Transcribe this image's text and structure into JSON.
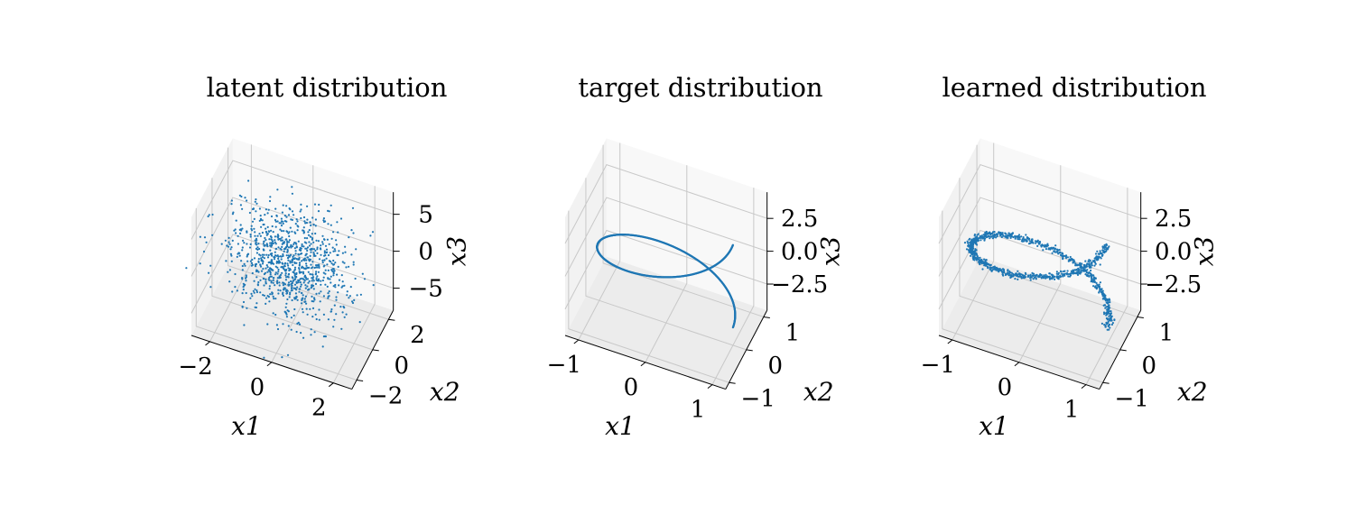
{
  "chart_data": [
    {
      "type": "scatter",
      "title": "latent distribution",
      "xlabel": "x1",
      "ylabel": "x2",
      "zlabel": "x3",
      "xlim": [
        -2.6,
        2.6
      ],
      "ylim": [
        -2.6,
        2.6
      ],
      "zlim": [
        -8,
        8
      ],
      "xticks": [
        "−2",
        "0",
        "2"
      ],
      "yticks": [
        "−2",
        "0",
        "2"
      ],
      "zticks": [
        "−5",
        "0",
        "5"
      ],
      "xtick_values": [
        -2,
        0,
        2
      ],
      "ytick_values": [
        -2,
        0,
        2
      ],
      "ztick_values": [
        -5,
        0,
        5
      ],
      "series": [
        {
          "kind": "gaussian-samples",
          "count": 1000,
          "mean": [
            0,
            0,
            0
          ],
          "std": [
            1,
            1,
            3
          ],
          "color": "#1f77b4",
          "marker": "dot"
        }
      ]
    },
    {
      "type": "scatter",
      "title": "target distribution",
      "xlabel": "x1",
      "ylabel": "x2",
      "zlabel": "x3",
      "xlim": [
        -1.2,
        1.2
      ],
      "ylim": [
        -1.2,
        1.2
      ],
      "zlim": [
        -4.5,
        4.5
      ],
      "xticks": [
        "−1",
        "0",
        "1"
      ],
      "yticks": [
        "−1",
        "0",
        "1"
      ],
      "zticks": [
        "−2.5",
        "0.0",
        "2.5"
      ],
      "xtick_values": [
        -1,
        0,
        1
      ],
      "ytick_values": [
        -1,
        0,
        1
      ],
      "ztick_values": [
        -2.5,
        0,
        2.5
      ],
      "series": [
        {
          "kind": "helix",
          "count": 1000,
          "t_range": [
            0,
            6.28
          ],
          "x": "cos(t)",
          "y": "sin(t)",
          "z": "t - 3.14",
          "noise": 0.0,
          "color": "#1f77b4",
          "marker": "dot"
        }
      ]
    },
    {
      "type": "scatter",
      "title": "learned distribution",
      "xlabel": "x1",
      "ylabel": "x2",
      "zlabel": "x3",
      "xlim": [
        -1.2,
        1.2
      ],
      "ylim": [
        -1.2,
        1.2
      ],
      "zlim": [
        -4.5,
        4.5
      ],
      "xticks": [
        "−1",
        "0",
        "1"
      ],
      "yticks": [
        "−1",
        "0",
        "1"
      ],
      "zticks": [
        "−2.5",
        "0.0",
        "2.5"
      ],
      "xtick_values": [
        -1,
        0,
        1
      ],
      "ytick_values": [
        -1,
        0,
        1
      ],
      "ztick_values": [
        -2.5,
        0,
        2.5
      ],
      "series": [
        {
          "kind": "helix",
          "count": 1000,
          "t_range": [
            0,
            6.28
          ],
          "x": "cos(t)",
          "y": "sin(t)",
          "z": "t - 3.14",
          "noise": 0.03,
          "color": "#1f77b4",
          "marker": "dot"
        }
      ]
    }
  ]
}
